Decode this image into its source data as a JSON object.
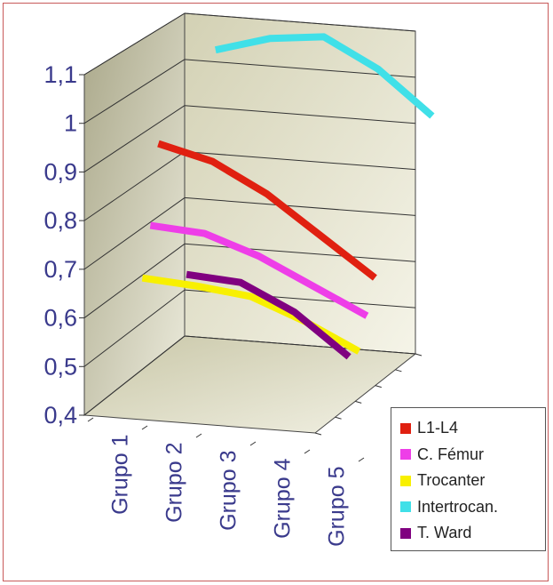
{
  "chart_data": {
    "type": "line",
    "title": "",
    "xlabel": "",
    "ylabel": "",
    "categories": [
      "Grupo 1",
      "Grupo 2",
      "Grupo 3",
      "Grupo 4",
      "Grupo 5"
    ],
    "y_ticks": [
      "0,4",
      "0,5",
      "0,6",
      "0,7",
      "0,8",
      "0,9",
      "1",
      "1,1"
    ],
    "ylim": [
      0.4,
      1.1
    ],
    "grid": true,
    "legend_position": "bottom-right",
    "style": "3d",
    "series": [
      {
        "name": "L1-L4",
        "color": "#e02010",
        "values": [
          0.91,
          0.89,
          0.84,
          0.77,
          0.7
        ]
      },
      {
        "name": "C. Fémur",
        "color": "#ee3ee8",
        "values": [
          0.755,
          0.755,
          0.725,
          0.68,
          0.635
        ]
      },
      {
        "name": "Trocanter",
        "color": "#f8f000",
        "values": [
          0.66,
          0.66,
          0.655,
          0.62,
          0.575
        ]
      },
      {
        "name": "Intertrocan.",
        "color": "#40e0e8",
        "values": [
          1.01,
          1.05,
          1.07,
          1.02,
          0.94
        ]
      },
      {
        "name": "T. Ward",
        "color": "#800080",
        "values": [
          null,
          0.7,
          0.7,
          0.655,
          0.58
        ]
      }
    ]
  }
}
